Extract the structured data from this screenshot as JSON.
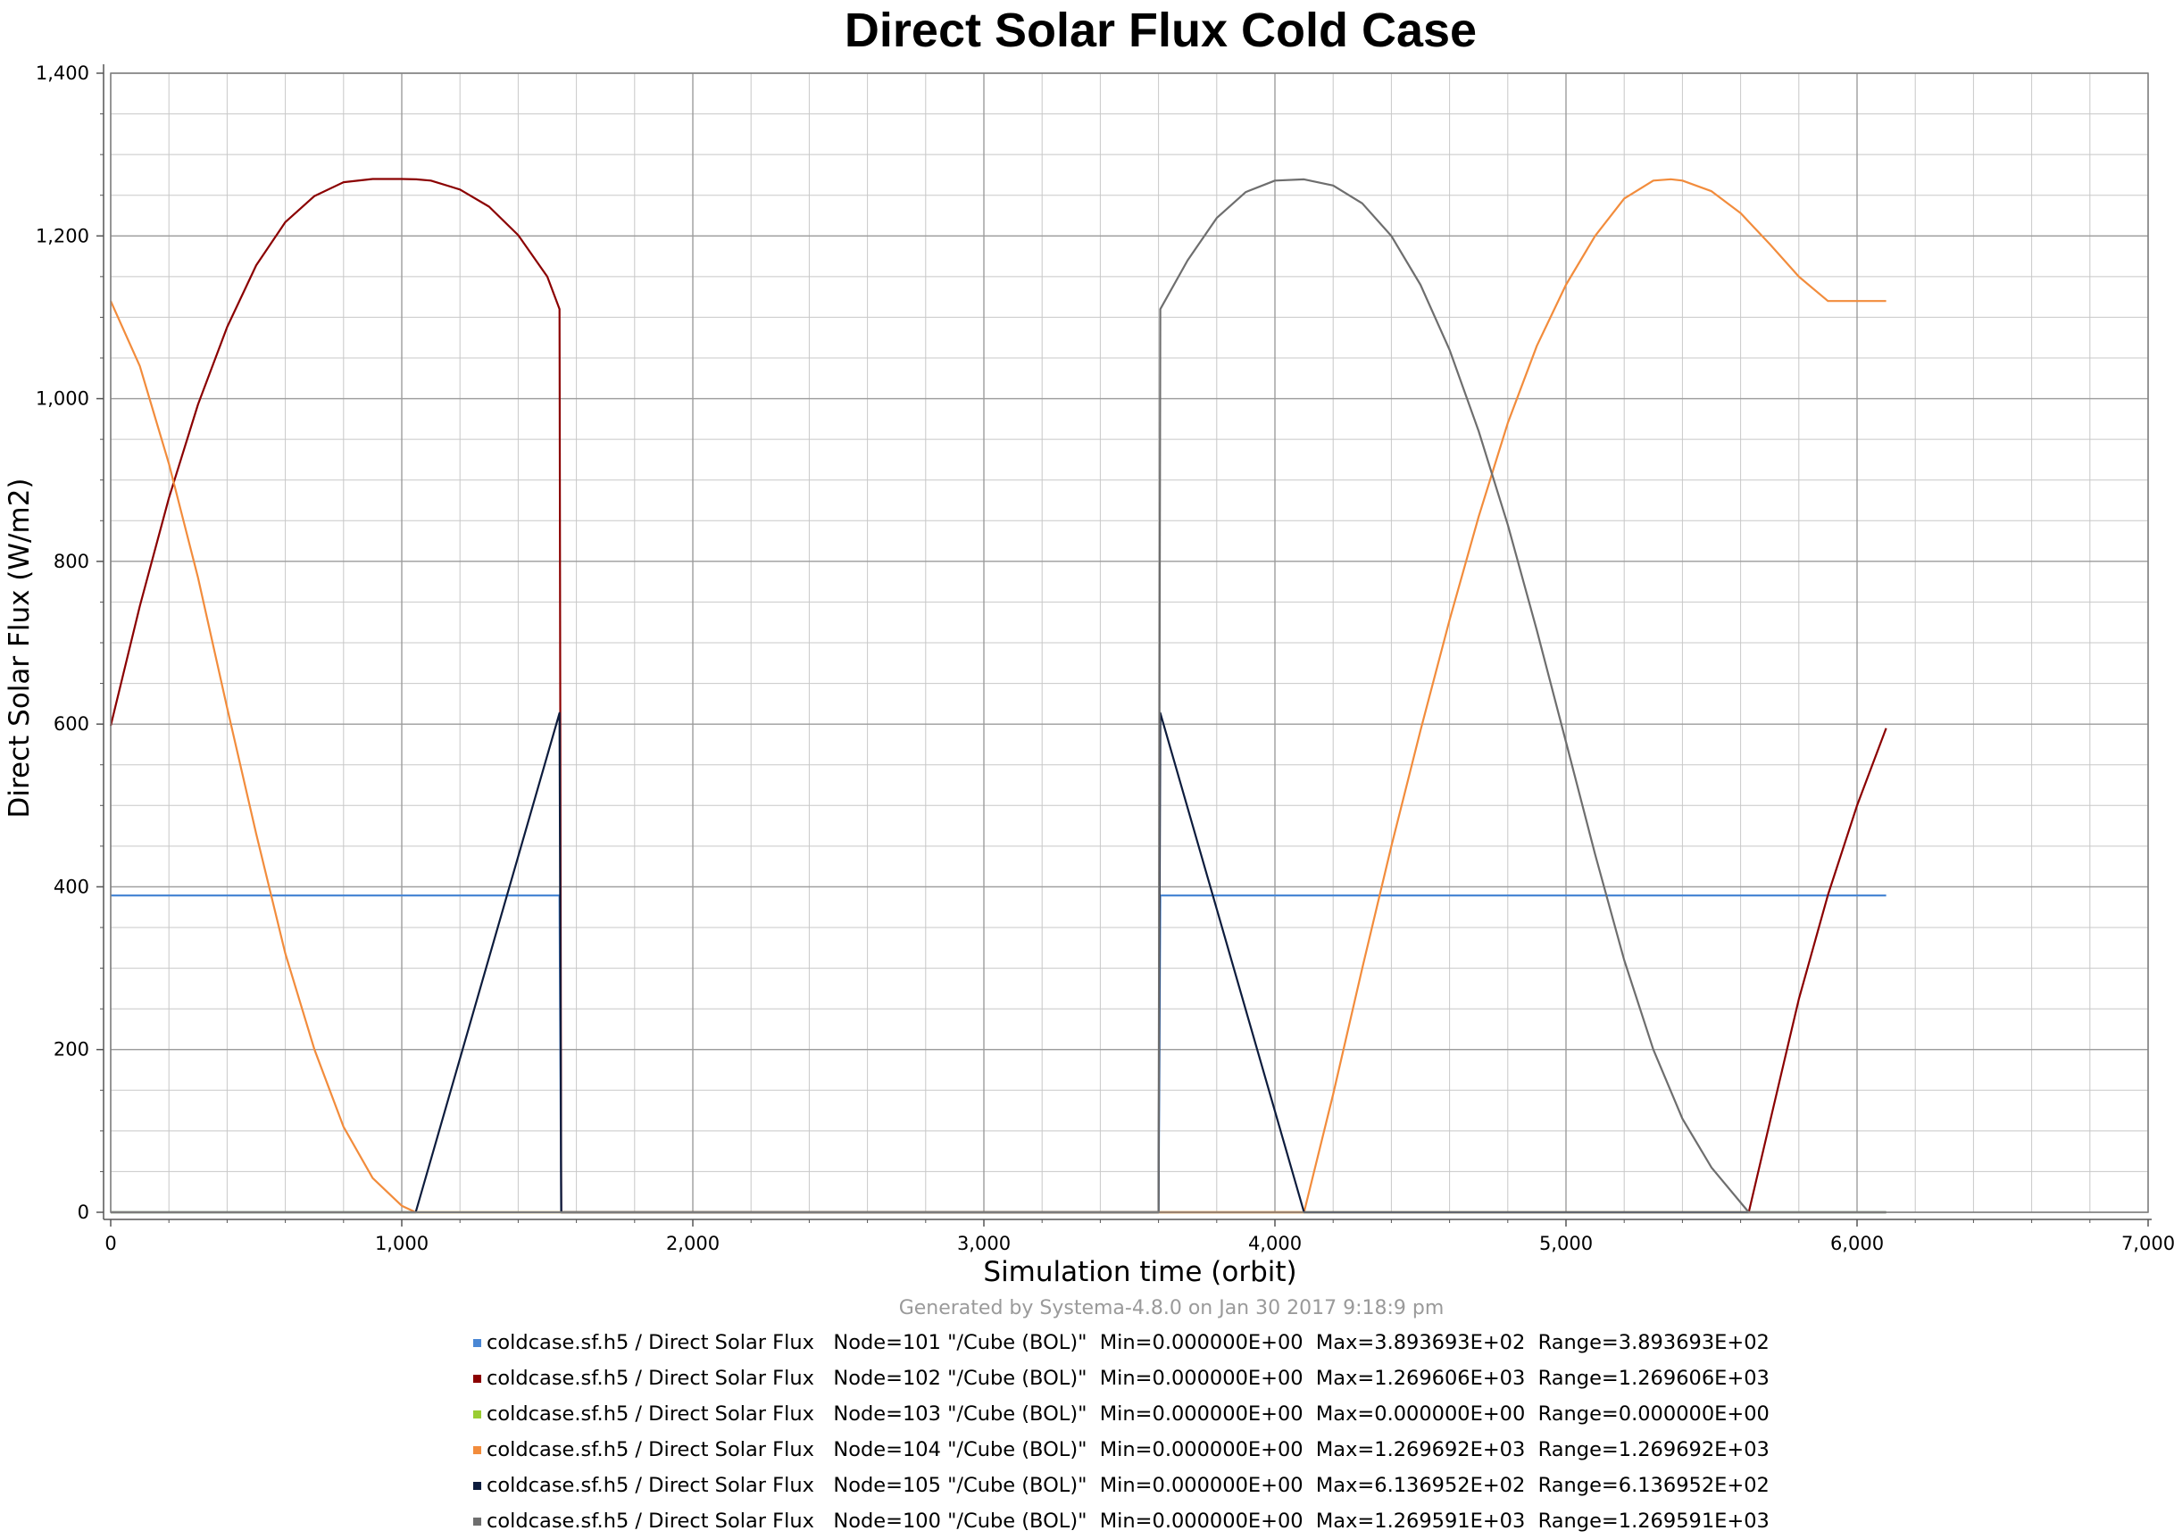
{
  "chart_data": {
    "type": "line",
    "title": "Direct Solar Flux Cold Case",
    "xlabel": "Simulation time (orbit)",
    "ylabel": "Direct Solar Flux (W/m2)",
    "footer": "Generated by Systema-4.8.0 on Jan 30 2017 9:18:9 pm",
    "xlim": [
      0,
      7000
    ],
    "ylim": [
      0,
      1400
    ],
    "xticks": [
      0,
      1000,
      2000,
      3000,
      4000,
      5000,
      6000,
      7000
    ],
    "xtick_labels": [
      "0",
      "1,000",
      "2,000",
      "3,000",
      "4,000",
      "5,000",
      "6,000",
      "7,000"
    ],
    "yticks": [
      0,
      200,
      400,
      600,
      800,
      1000,
      1200,
      1400
    ],
    "ytick_labels": [
      "0",
      "200",
      "400",
      "600",
      "800",
      "1,000",
      "1,200",
      "1,400"
    ],
    "grid": true,
    "series": [
      {
        "color": "#4a87d4",
        "legend": "coldcase.sf.h5 / Direct Solar Flux   Node=101 \"/Cube (BOL)\"  Min=0.000000E+00  Max=3.893693E+02  Range=3.893693E+02",
        "points": [
          [
            0,
            389.4
          ],
          [
            1542,
            389.4
          ],
          [
            1548,
            0
          ],
          [
            3600,
            0
          ],
          [
            3606,
            389.4
          ],
          [
            6100,
            389.4
          ]
        ]
      },
      {
        "color": "#8b0000",
        "legend": "coldcase.sf.h5 / Direct Solar Flux   Node=102 \"/Cube (BOL)\"  Min=0.000000E+00  Max=1.269606E+03  Range=1.269606E+03",
        "points": [
          [
            0,
            598
          ],
          [
            100,
            745
          ],
          [
            200,
            878
          ],
          [
            300,
            993
          ],
          [
            400,
            1088
          ],
          [
            500,
            1164
          ],
          [
            600,
            1217
          ],
          [
            700,
            1249
          ],
          [
            800,
            1266
          ],
          [
            900,
            1270
          ],
          [
            1000,
            1270
          ],
          [
            1050,
            1269.6
          ],
          [
            1100,
            1268
          ],
          [
            1200,
            1257
          ],
          [
            1300,
            1236
          ],
          [
            1400,
            1201
          ],
          [
            1500,
            1150
          ],
          [
            1542,
            1110
          ],
          [
            1548,
            0
          ],
          [
            5628,
            0
          ],
          [
            5700,
            110
          ],
          [
            5800,
            262
          ],
          [
            5900,
            390
          ],
          [
            6000,
            500
          ],
          [
            6100,
            595
          ]
        ]
      },
      {
        "color": "#9acd32",
        "legend": "coldcase.sf.h5 / Direct Solar Flux   Node=103 \"/Cube (BOL)\"  Min=0.000000E+00  Max=0.000000E+00  Range=0.000000E+00",
        "points": [
          [
            0,
            0
          ],
          [
            6100,
            0
          ]
        ]
      },
      {
        "color": "#f28c3c",
        "legend": "coldcase.sf.h5 / Direct Solar Flux   Node=104 \"/Cube (BOL)\"  Min=0.000000E+00  Max=1.269692E+03  Range=1.269692E+03",
        "points": [
          [
            0,
            1120
          ],
          [
            100,
            1040
          ],
          [
            200,
            920
          ],
          [
            300,
            780
          ],
          [
            400,
            620
          ],
          [
            500,
            465
          ],
          [
            600,
            318
          ],
          [
            700,
            200
          ],
          [
            800,
            105
          ],
          [
            900,
            42
          ],
          [
            1000,
            8
          ],
          [
            1048,
            0
          ],
          [
            4100,
            0
          ],
          [
            4200,
            145
          ],
          [
            4300,
            300
          ],
          [
            4400,
            450
          ],
          [
            4500,
            592
          ],
          [
            4600,
            728
          ],
          [
            4700,
            855
          ],
          [
            4800,
            970
          ],
          [
            4900,
            1065
          ],
          [
            5000,
            1140
          ],
          [
            5100,
            1200
          ],
          [
            5200,
            1246
          ],
          [
            5300,
            1268
          ],
          [
            5360,
            1269.7
          ],
          [
            5400,
            1268
          ],
          [
            5500,
            1255
          ],
          [
            5600,
            1228
          ],
          [
            5700,
            1190
          ],
          [
            5800,
            1150
          ],
          [
            5900,
            1120
          ],
          [
            6000,
            1120
          ],
          [
            6100,
            1120
          ]
        ]
      },
      {
        "color": "#0d1c3d",
        "legend": "coldcase.sf.h5 / Direct Solar Flux   Node=105 \"/Cube (BOL)\"  Min=0.000000E+00  Max=6.136952E+02  Range=6.136952E+02",
        "points": [
          [
            0,
            0
          ],
          [
            1048,
            0
          ],
          [
            1542,
            613.7
          ],
          [
            1548,
            0
          ],
          [
            3600,
            0
          ],
          [
            3606,
            613.7
          ],
          [
            4100,
            0
          ],
          [
            6100,
            0
          ]
        ]
      },
      {
        "color": "#6e6e6e",
        "legend": "coldcase.sf.h5 / Direct Solar Flux   Node=100 \"/Cube (BOL)\"  Min=0.000000E+00  Max=1.269591E+03  Range=1.269591E+03",
        "points": [
          [
            0,
            0
          ],
          [
            3600,
            0
          ],
          [
            3606,
            1110
          ],
          [
            3700,
            1170
          ],
          [
            3800,
            1222
          ],
          [
            3900,
            1254
          ],
          [
            4000,
            1268
          ],
          [
            4100,
            1269.6
          ],
          [
            4200,
            1262
          ],
          [
            4300,
            1240
          ],
          [
            4400,
            1200
          ],
          [
            4500,
            1140
          ],
          [
            4600,
            1060
          ],
          [
            4700,
            960
          ],
          [
            4800,
            845
          ],
          [
            4900,
            715
          ],
          [
            5000,
            578
          ],
          [
            5100,
            440
          ],
          [
            5200,
            310
          ],
          [
            5300,
            200
          ],
          [
            5400,
            115
          ],
          [
            5500,
            55
          ],
          [
            5628,
            0
          ],
          [
            6100,
            0
          ]
        ]
      }
    ]
  }
}
